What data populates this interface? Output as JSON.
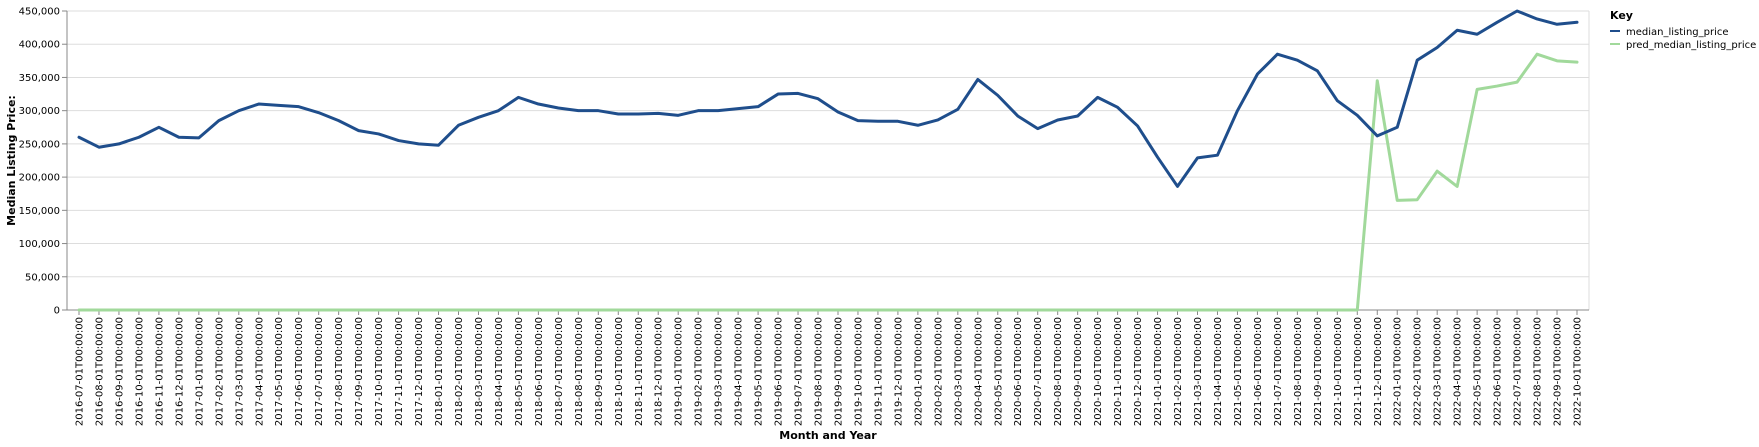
{
  "chart_data": {
    "type": "line",
    "title": "",
    "xlabel": "Month and Year",
    "ylabel": "Median Listing Price:",
    "ylim": [
      0,
      450000
    ],
    "yticks": [
      0,
      50000,
      100000,
      150000,
      200000,
      250000,
      300000,
      350000,
      400000,
      450000
    ],
    "ytick_labels": [
      "0",
      "50,000",
      "100,000",
      "150,000",
      "200,000",
      "250,000",
      "300,000",
      "350,000",
      "400,000",
      "450,000"
    ],
    "grid": true,
    "legend": {
      "title": "Key",
      "placement": "top-right",
      "entries": [
        "median_listing_price",
        "pred_median_listing_price"
      ]
    },
    "x": [
      "2016-07-01T00:00:00",
      "2016-08-01T00:00:00",
      "2016-09-01T00:00:00",
      "2016-10-01T00:00:00",
      "2016-11-01T00:00:00",
      "2016-12-01T00:00:00",
      "2017-01-01T00:00:00",
      "2017-02-01T00:00:00",
      "2017-03-01T00:00:00",
      "2017-04-01T00:00:00",
      "2017-05-01T00:00:00",
      "2017-06-01T00:00:00",
      "2017-07-01T00:00:00",
      "2017-08-01T00:00:00",
      "2017-09-01T00:00:00",
      "2017-10-01T00:00:00",
      "2017-11-01T00:00:00",
      "2017-12-01T00:00:00",
      "2018-01-01T00:00:00",
      "2018-02-01T00:00:00",
      "2018-03-01T00:00:00",
      "2018-04-01T00:00:00",
      "2018-05-01T00:00:00",
      "2018-06-01T00:00:00",
      "2018-07-01T00:00:00",
      "2018-08-01T00:00:00",
      "2018-09-01T00:00:00",
      "2018-10-01T00:00:00",
      "2018-11-01T00:00:00",
      "2018-12-01T00:00:00",
      "2019-01-01T00:00:00",
      "2019-02-01T00:00:00",
      "2019-03-01T00:00:00",
      "2019-04-01T00:00:00",
      "2019-05-01T00:00:00",
      "2019-06-01T00:00:00",
      "2019-07-01T00:00:00",
      "2019-08-01T00:00:00",
      "2019-09-01T00:00:00",
      "2019-10-01T00:00:00",
      "2019-11-01T00:00:00",
      "2019-12-01T00:00:00",
      "2020-01-01T00:00:00",
      "2020-02-01T00:00:00",
      "2020-03-01T00:00:00",
      "2020-04-01T00:00:00",
      "2020-05-01T00:00:00",
      "2020-06-01T00:00:00",
      "2020-07-01T00:00:00",
      "2020-08-01T00:00:00",
      "2020-09-01T00:00:00",
      "2020-10-01T00:00:00",
      "2020-11-01T00:00:00",
      "2020-12-01T00:00:00",
      "2021-01-01T00:00:00",
      "2021-02-01T00:00:00",
      "2021-03-01T00:00:00",
      "2021-04-01T00:00:00",
      "2021-05-01T00:00:00",
      "2021-06-01T00:00:00",
      "2021-07-01T00:00:00",
      "2021-08-01T00:00:00",
      "2021-09-01T00:00:00",
      "2021-10-01T00:00:00",
      "2021-11-01T00:00:00",
      "2021-12-01T00:00:00",
      "2022-01-01T00:00:00",
      "2022-02-01T00:00:00",
      "2022-03-01T00:00:00",
      "2022-04-01T00:00:00",
      "2022-05-01T00:00:00",
      "2022-06-01T00:00:00",
      "2022-07-01T00:00:00",
      "2022-08-01T00:00:00",
      "2022-09-01T00:00:00",
      "2022-10-01T00:00:00"
    ],
    "series": [
      {
        "name": "median_listing_price",
        "color": "#1f4e8c",
        "values": [
          260000,
          245000,
          250000,
          260000,
          275000,
          260000,
          259000,
          285000,
          300000,
          310000,
          308000,
          306000,
          297000,
          285000,
          270000,
          265000,
          255000,
          250000,
          248000,
          278000,
          290000,
          300000,
          320000,
          310000,
          304000,
          300000,
          300000,
          295000,
          295000,
          296000,
          293000,
          300000,
          300000,
          303000,
          306000,
          325000,
          326000,
          318000,
          298000,
          285000,
          284000,
          284000,
          278000,
          286000,
          302000,
          347000,
          323000,
          292000,
          273000,
          286000,
          292000,
          320000,
          305000,
          277000,
          230000,
          186000,
          229000,
          233000,
          300000,
          355000,
          385000,
          376000,
          360000,
          315000,
          293000,
          262000,
          275000,
          376000,
          395000,
          421000,
          415000,
          433000,
          450000,
          438000,
          430000,
          433000
        ]
      },
      {
        "name": "pred_median_listing_price",
        "color": "#a1d99b",
        "values": [
          0,
          0,
          0,
          0,
          0,
          0,
          0,
          0,
          0,
          0,
          0,
          0,
          0,
          0,
          0,
          0,
          0,
          0,
          0,
          0,
          0,
          0,
          0,
          0,
          0,
          0,
          0,
          0,
          0,
          0,
          0,
          0,
          0,
          0,
          0,
          0,
          0,
          0,
          0,
          0,
          0,
          0,
          0,
          0,
          0,
          0,
          0,
          0,
          0,
          0,
          0,
          0,
          0,
          0,
          0,
          0,
          0,
          0,
          0,
          0,
          0,
          0,
          0,
          0,
          0,
          345000,
          165000,
          166000,
          209000,
          186000,
          332000,
          337000,
          343000,
          385000,
          375000,
          373000
        ]
      }
    ]
  }
}
